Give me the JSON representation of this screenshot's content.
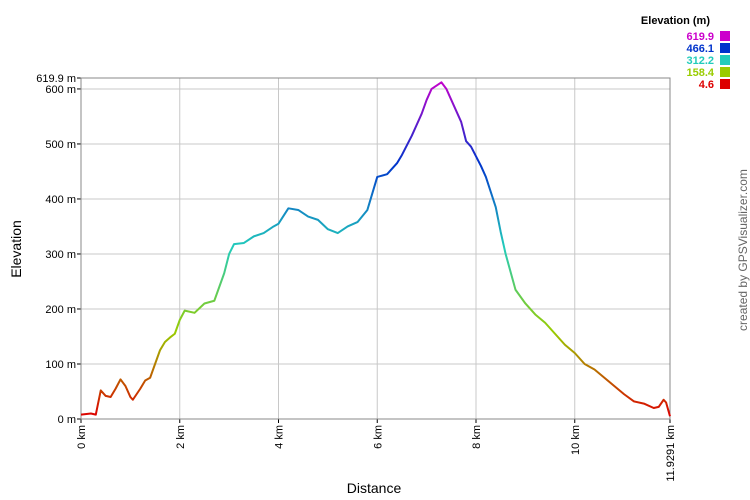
{
  "chart_data": {
    "type": "line",
    "x_label": "Distance",
    "y_label": "Elevation",
    "x": [
      0,
      0.2,
      0.3,
      0.4,
      0.5,
      0.6,
      0.7,
      0.8,
      0.9,
      1.0,
      1.05,
      1.2,
      1.3,
      1.4,
      1.5,
      1.6,
      1.7,
      1.8,
      1.9,
      2.0,
      2.1,
      2.3,
      2.5,
      2.7,
      2.9,
      3.0,
      3.1,
      3.3,
      3.5,
      3.7,
      3.9,
      4.0,
      4.2,
      4.4,
      4.6,
      4.8,
      5.0,
      5.2,
      5.4,
      5.6,
      5.8,
      6.0,
      6.2,
      6.4,
      6.5,
      6.7,
      6.9,
      7.0,
      7.1,
      7.3,
      7.4,
      7.5,
      7.7,
      7.8,
      7.9,
      8.1,
      8.2,
      8.4,
      8.5,
      8.6,
      8.8,
      9.0,
      9.2,
      9.4,
      9.6,
      9.8,
      10.0,
      10.2,
      10.4,
      10.6,
      10.8,
      11.0,
      11.2,
      11.4,
      11.6,
      11.7,
      11.8,
      11.85,
      11.9291
    ],
    "values": [
      8,
      10,
      8,
      52,
      42,
      40,
      55,
      72,
      60,
      40,
      35,
      55,
      70,
      75,
      100,
      125,
      140,
      148,
      155,
      180,
      197,
      193,
      210,
      215,
      265,
      300,
      318,
      320,
      332,
      338,
      350,
      355,
      383,
      380,
      368,
      362,
      345,
      338,
      350,
      358,
      380,
      440,
      445,
      465,
      480,
      515,
      555,
      580,
      600,
      612,
      600,
      580,
      540,
      505,
      495,
      460,
      440,
      385,
      340,
      300,
      235,
      210,
      190,
      175,
      155,
      135,
      120,
      100,
      90,
      75,
      60,
      45,
      32,
      28,
      20,
      22,
      35,
      30,
      5
    ],
    "xlim": [
      0,
      11.9291
    ],
    "xticks": [
      {
        "value": 0,
        "label": "0 km"
      },
      {
        "value": 2,
        "label": "2 km"
      },
      {
        "value": 4,
        "label": "4 km"
      },
      {
        "value": 6,
        "label": "6 km"
      },
      {
        "value": 8,
        "label": "8 km"
      },
      {
        "value": 10,
        "label": "10 km"
      },
      {
        "value": 11.9291,
        "label": "11.9291 km"
      }
    ],
    "ylim": [
      0,
      619.9
    ],
    "yticks": [
      {
        "value": 0,
        "label": "0 m"
      },
      {
        "value": 100,
        "label": "100 m"
      },
      {
        "value": 200,
        "label": "200 m"
      },
      {
        "value": 300,
        "label": "300 m"
      },
      {
        "value": 400,
        "label": "400 m"
      },
      {
        "value": 500,
        "label": "500 m"
      },
      {
        "value": 600,
        "label": "600 m"
      },
      {
        "value": 619.9,
        "label": "619.9 m"
      }
    ],
    "grid": true,
    "legend": {
      "title": "Elevation (m)",
      "entries": [
        {
          "value": 619.9,
          "color": "#cc00cc"
        },
        {
          "value": 466.1,
          "color": "#0033cc"
        },
        {
          "value": 312.2,
          "color": "#22ccbb"
        },
        {
          "value": 158.4,
          "color": "#99cc00"
        },
        {
          "value": 4.6,
          "color": "#dd0000"
        }
      ]
    },
    "credit": "created by GPSVisualizer.com"
  }
}
